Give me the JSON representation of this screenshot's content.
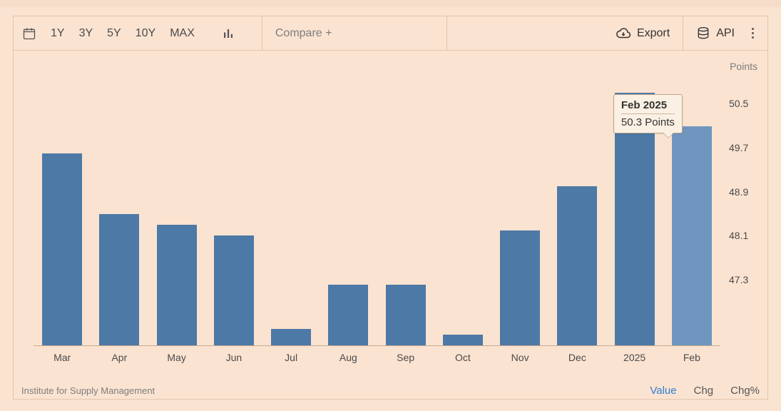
{
  "toolbar": {
    "ranges": [
      "1Y",
      "3Y",
      "5Y",
      "10Y",
      "MAX"
    ],
    "compare_placeholder": "Compare +",
    "export_label": "Export",
    "api_label": "API"
  },
  "chart": {
    "type": "bar",
    "unit_label": "Points",
    "categories": [
      "Mar",
      "Apr",
      "May",
      "Jun",
      "Jul",
      "Aug",
      "Sep",
      "Oct",
      "Nov",
      "Dec",
      "2025",
      "Feb"
    ],
    "values": [
      49.8,
      48.7,
      48.5,
      48.3,
      46.6,
      47.4,
      47.4,
      46.5,
      48.4,
      49.2,
      50.9,
      50.3
    ],
    "bar_color": "#4d79a6",
    "highlight_bar_color": "#6f96bf",
    "highlight_index": 11,
    "yaxis": {
      "ticks": [
        47.3,
        48.1,
        48.9,
        49.7,
        50.5
      ],
      "baseline": 46.3,
      "max": 51.1
    },
    "background_color": "#fbe3d1",
    "axis_color": "#c7a98e",
    "text_color": "#4a4a4a",
    "bar_width_ratio": 0.7,
    "label_fontsize": 14
  },
  "tooltip": {
    "title": "Feb 2025",
    "value_text": "50.3 Points"
  },
  "footer": {
    "source": "Institute for Supply Management",
    "tabs": [
      "Value",
      "Chg",
      "Chg%"
    ],
    "active_tab_index": 0,
    "active_tab_color": "#2f7fd1"
  }
}
